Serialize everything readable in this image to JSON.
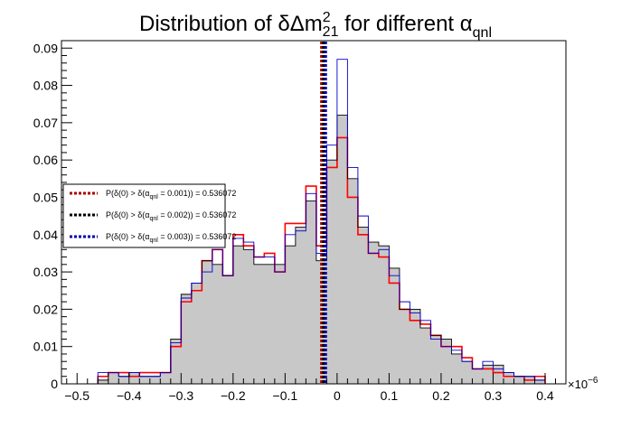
{
  "chart_data": {
    "type": "area",
    "title_parts": {
      "prefix": "Distribution of δΔm",
      "sup": "2",
      "sub": "21",
      "middle": " for different α",
      "sub2": "qnl"
    },
    "x_multiplier": "×10",
    "x_multiplier_exp": "−6",
    "xlim": [
      -0.53,
      0.44
    ],
    "ylim": [
      0,
      0.092
    ],
    "x_ticks": [
      -0.5,
      -0.4,
      -0.3,
      -0.2,
      -0.1,
      0,
      0.1,
      0.2,
      0.3,
      0.4
    ],
    "x_tick_labels": [
      "−0.5",
      "−0.4",
      "−0.3",
      "−0.2",
      "−0.1",
      "0",
      "0.1",
      "0.2",
      "0.3",
      "0.4"
    ],
    "y_ticks": [
      0,
      0.01,
      0.02,
      0.03,
      0.04,
      0.05,
      0.06,
      0.07,
      0.08,
      0.09
    ],
    "y_tick_labels": [
      "0",
      "0.01",
      "0.02",
      "0.03",
      "0.04",
      "0.05",
      "0.06",
      "0.07",
      "0.08",
      "0.09"
    ],
    "bin_edges": [
      -0.46,
      -0.44,
      -0.42,
      -0.4,
      -0.38,
      -0.36,
      -0.34,
      -0.32,
      -0.3,
      -0.28,
      -0.26,
      -0.24,
      -0.22,
      -0.2,
      -0.18,
      -0.16,
      -0.14,
      -0.12,
      -0.1,
      -0.08,
      -0.06,
      -0.04,
      -0.02,
      0.0,
      0.02,
      0.04,
      0.06,
      0.08,
      0.1,
      0.12,
      0.14,
      0.16,
      0.18,
      0.2,
      0.22,
      0.24,
      0.26,
      0.28,
      0.3,
      0.32,
      0.34,
      0.36,
      0.38,
      0.4
    ],
    "series": [
      {
        "name": "α_qnl = 0.001",
        "color": "#ff0000",
        "values": [
          0.002,
          0.003,
          0.003,
          0.002,
          0.003,
          0.003,
          0.003,
          0.01,
          0.022,
          0.025,
          0.033,
          0.036,
          0.029,
          0.04,
          0.037,
          0.034,
          0.035,
          0.03,
          0.043,
          0.043,
          0.053,
          0.037,
          0.058,
          0.066,
          0.05,
          0.04,
          0.035,
          0.034,
          0.027,
          0.02,
          0.017,
          0.016,
          0.013,
          0.01,
          0.01,
          0.007,
          0.004,
          0.004,
          0.003,
          0.002,
          0.002,
          0.001,
          0.002
        ]
      },
      {
        "name": "α_qnl = 0.002",
        "color": "#000000",
        "values": [
          0.001,
          0.003,
          0.002,
          0.003,
          0.002,
          0.002,
          0.003,
          0.012,
          0.024,
          0.027,
          0.033,
          0.032,
          0.029,
          0.037,
          0.036,
          0.032,
          0.032,
          0.032,
          0.037,
          0.042,
          0.049,
          0.033,
          0.06,
          0.072,
          0.055,
          0.042,
          0.038,
          0.037,
          0.031,
          0.02,
          0.02,
          0.015,
          0.013,
          0.012,
          0.008,
          0.006,
          0.004,
          0.005,
          0.005,
          0.003,
          0.002,
          0.002,
          0.001
        ]
      },
      {
        "name": "α_qnl = 0.003",
        "color": "#0000cc",
        "values": [
          0.003,
          0.003,
          0.002,
          0.003,
          0.002,
          0.002,
          0.003,
          0.011,
          0.023,
          0.027,
          0.03,
          0.036,
          0.029,
          0.039,
          0.038,
          0.034,
          0.034,
          0.03,
          0.04,
          0.041,
          0.051,
          0.035,
          0.064,
          0.087,
          0.058,
          0.045,
          0.035,
          0.036,
          0.029,
          0.022,
          0.019,
          0.017,
          0.012,
          0.01,
          0.009,
          0.006,
          0.004,
          0.006,
          0.004,
          0.003,
          0.002,
          0.002,
          0.001
        ]
      }
    ],
    "vertical_lines": [
      {
        "series": "α_qnl = 0.001",
        "x": -0.03,
        "color": "#aa0000"
      },
      {
        "series": "α_qnl = 0.002",
        "x": -0.026,
        "color": "#000000"
      },
      {
        "series": "α_qnl = 0.003",
        "x": -0.022,
        "color": "#0000aa"
      }
    ],
    "legend": {
      "placement": "left",
      "entries": [
        {
          "color": "#aa0000",
          "text_a": "P(δ(0) > δ(α",
          "text_b": " = 0.001)) = 0.536072"
        },
        {
          "color": "#000000",
          "text_a": "P(δ(0) > δ(α",
          "text_b": " = 0.002)) = 0.536072"
        },
        {
          "color": "#0000aa",
          "text_a": "P(δ(0) > δ(α",
          "text_b": " = 0.003)) = 0.536072"
        }
      ],
      "sub": "qnl"
    },
    "fill_color": "#c8c8c8",
    "grid": false
  }
}
